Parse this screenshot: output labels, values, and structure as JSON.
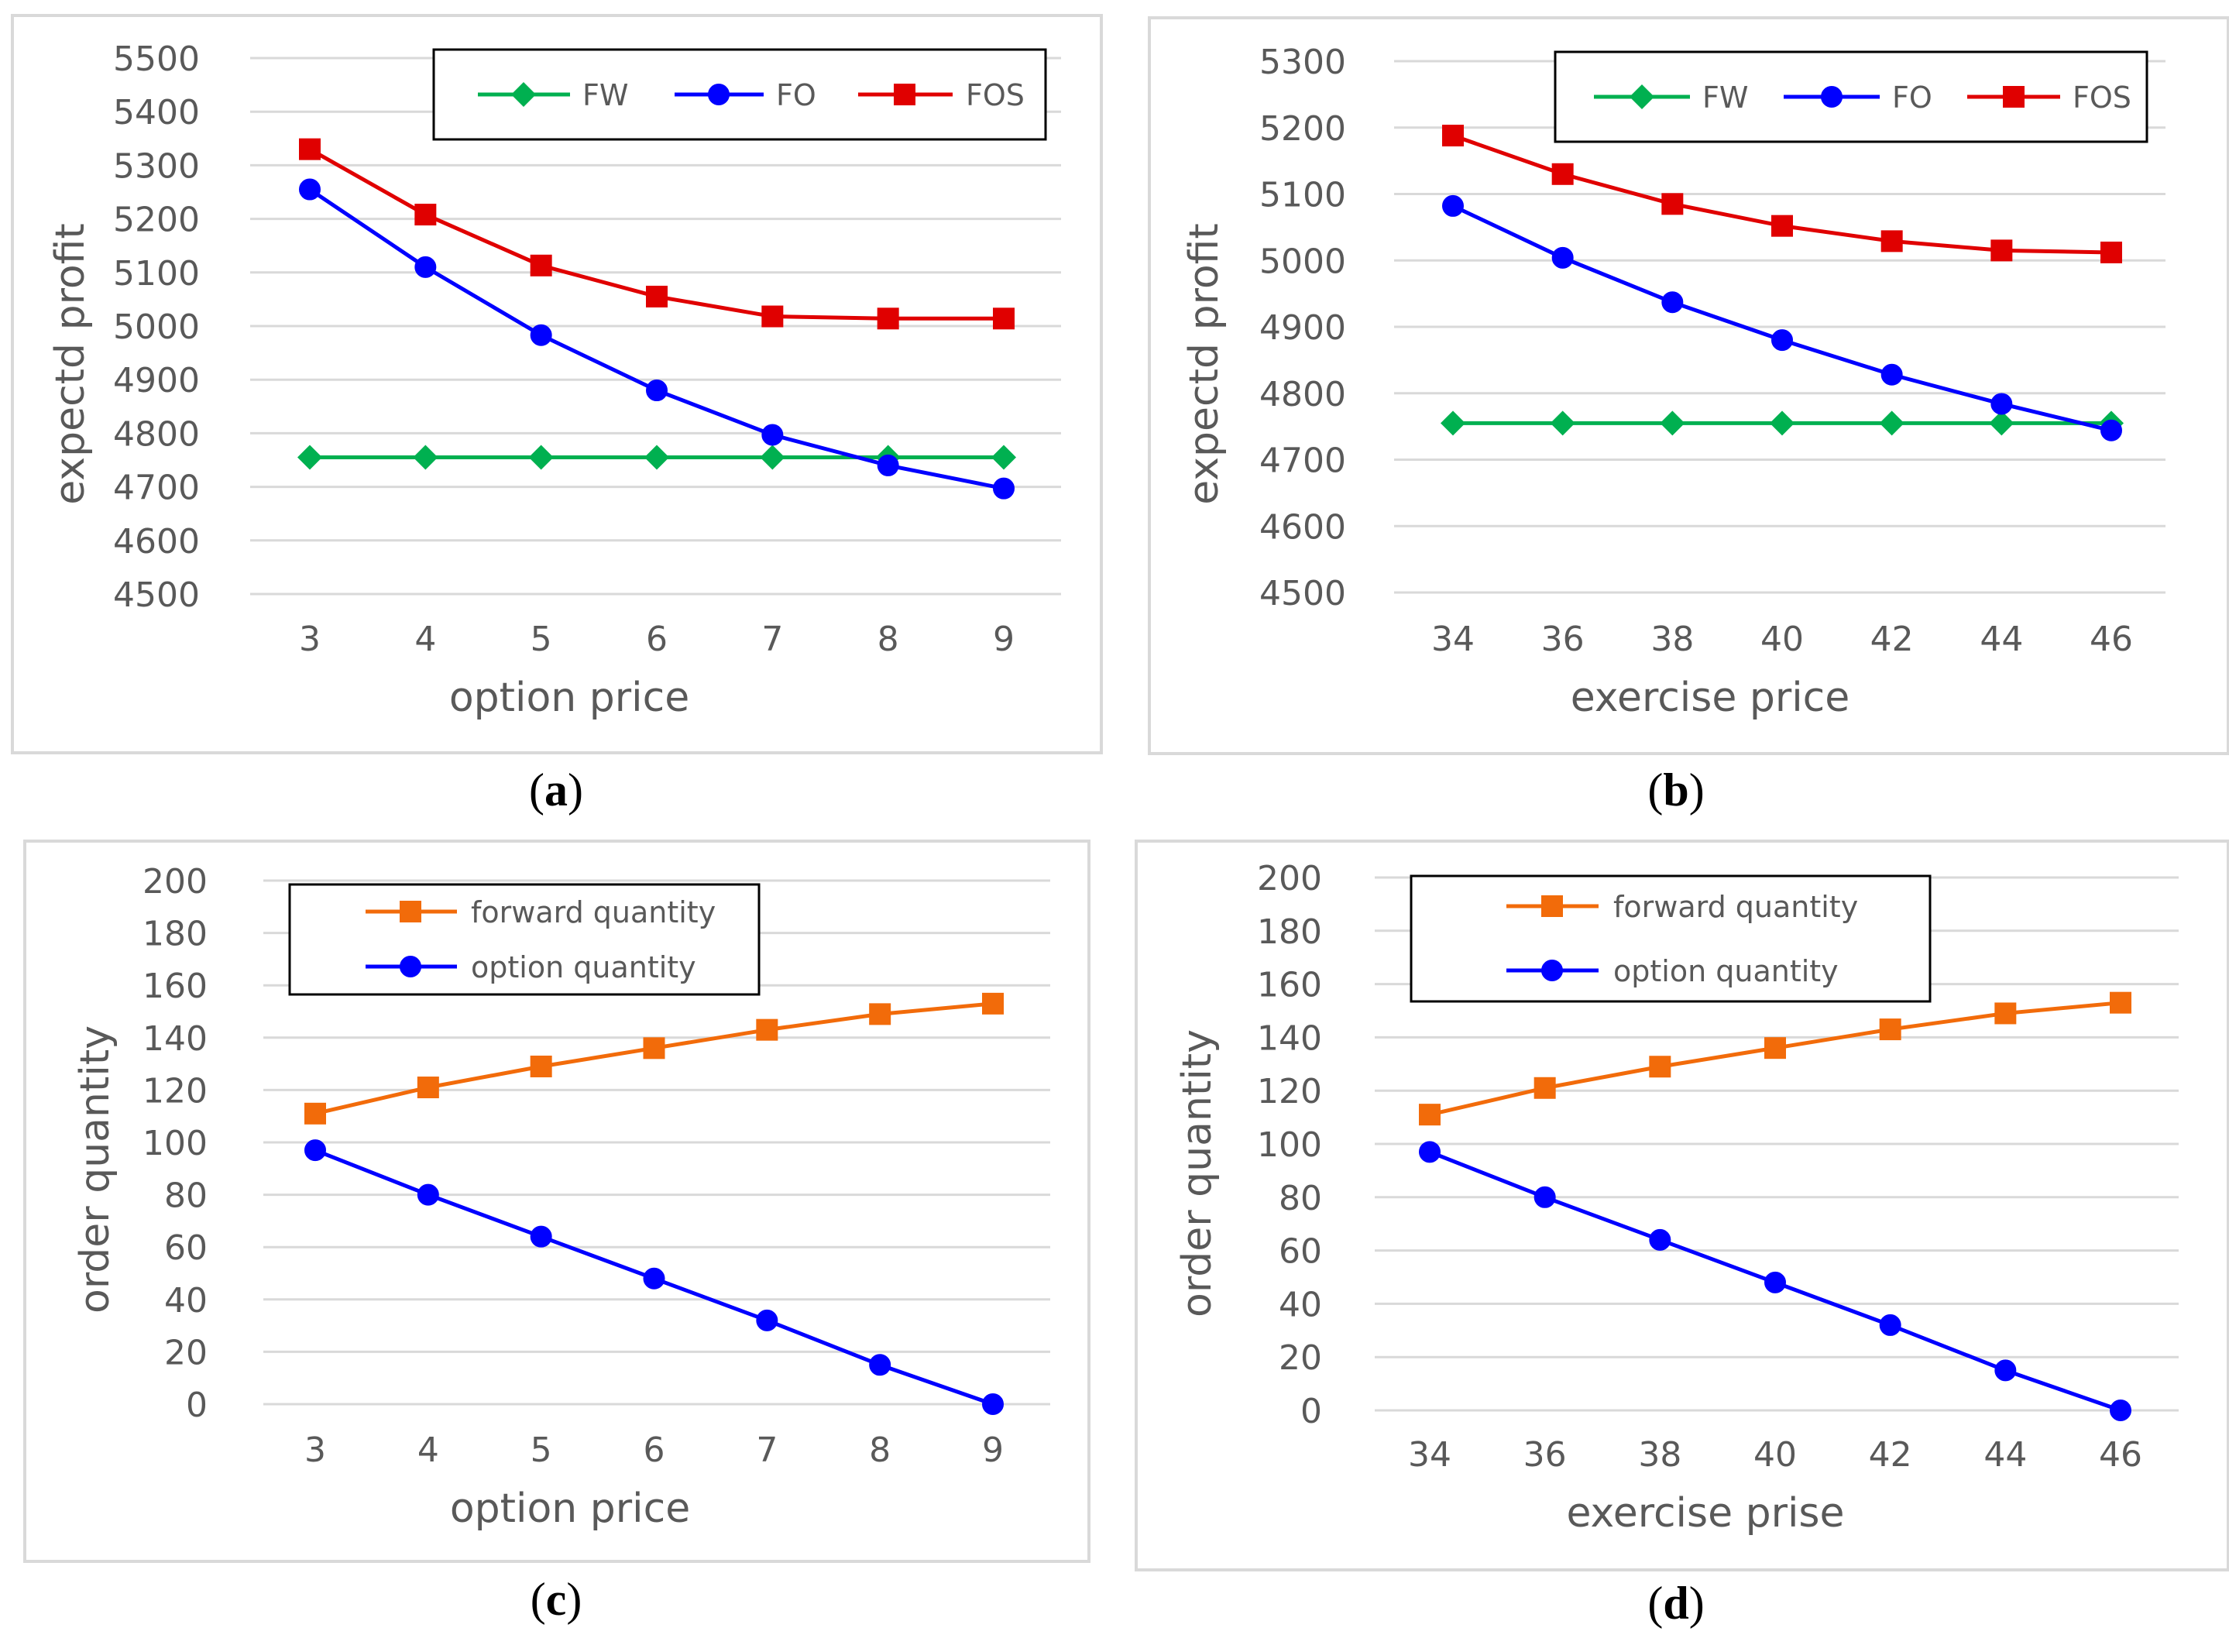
{
  "chart_data": [
    {
      "id": "a",
      "type": "line",
      "caption_letter": "a",
      "x": [
        "3",
        "4",
        "5",
        "6",
        "7",
        "8",
        "9"
      ],
      "xlabel": "option price",
      "ylabel": "expectd profit",
      "ylim": [
        4500,
        5500
      ],
      "yticks": [
        "4500",
        "4600",
        "4700",
        "4800",
        "4900",
        "5000",
        "5100",
        "5200",
        "5300",
        "5400",
        "5500"
      ],
      "grid": true,
      "legend_position": "top",
      "series": [
        {
          "name": "FW",
          "color": "#00B050",
          "marker": "diamond",
          "values": [
            4755,
            4755,
            4755,
            4755,
            4755,
            4755,
            4755
          ]
        },
        {
          "name": "FO",
          "color": "#0000FF",
          "marker": "circle",
          "values": [
            5255,
            5110,
            4983,
            4880,
            4797,
            4740,
            4697
          ]
        },
        {
          "name": "FOS",
          "color": "#E00000",
          "marker": "square",
          "values": [
            5330,
            5208,
            5113,
            5055,
            5018,
            5014,
            5014
          ]
        }
      ]
    },
    {
      "id": "b",
      "type": "line",
      "caption_letter": "b",
      "x": [
        "34",
        "36",
        "38",
        "40",
        "42",
        "44",
        "46"
      ],
      "xlabel": "exercise price",
      "ylabel": "expectd profit",
      "ylim": [
        4500,
        5300
      ],
      "yticks": [
        "4500",
        "4600",
        "4700",
        "4800",
        "4900",
        "5000",
        "5100",
        "5200",
        "5300"
      ],
      "grid": true,
      "legend_position": "top",
      "series": [
        {
          "name": "FW",
          "color": "#00B050",
          "marker": "diamond",
          "values": [
            4755,
            4755,
            4755,
            4755,
            4755,
            4755,
            4755
          ]
        },
        {
          "name": "FO",
          "color": "#0000FF",
          "marker": "circle",
          "values": [
            5082,
            5004,
            4937,
            4880,
            4828,
            4784,
            4744
          ]
        },
        {
          "name": "FOS",
          "color": "#E00000",
          "marker": "square",
          "values": [
            5188,
            5130,
            5085,
            5052,
            5029,
            5015,
            5012
          ]
        }
      ]
    },
    {
      "id": "c",
      "type": "line",
      "caption_letter": "c",
      "x": [
        "3",
        "4",
        "5",
        "6",
        "7",
        "8",
        "9"
      ],
      "xlabel": "option price",
      "ylabel": "order quantity",
      "ylim": [
        0,
        200
      ],
      "yticks": [
        "0",
        "20",
        "40",
        "60",
        "80",
        "100",
        "120",
        "140",
        "160",
        "180",
        "200"
      ],
      "grid": true,
      "legend_position": "top-left",
      "series": [
        {
          "name": "forward quantity",
          "color": "#F26B0A",
          "marker": "square",
          "values": [
            111,
            121,
            129,
            136,
            143,
            149,
            153
          ]
        },
        {
          "name": "option quantity",
          "color": "#0000FF",
          "marker": "circle",
          "values": [
            97,
            80,
            64,
            48,
            32,
            15,
            0
          ]
        }
      ]
    },
    {
      "id": "d",
      "type": "line",
      "caption_letter": "d",
      "x": [
        "34",
        "36",
        "38",
        "40",
        "42",
        "44",
        "46"
      ],
      "xlabel": "exercise prise",
      "ylabel": "order quantity",
      "ylim": [
        0,
        200
      ],
      "yticks": [
        "0",
        "20",
        "40",
        "60",
        "80",
        "100",
        "120",
        "140",
        "160",
        "180",
        "200"
      ],
      "grid": true,
      "legend_position": "top-left",
      "series": [
        {
          "name": "forward quantity",
          "color": "#F26B0A",
          "marker": "square",
          "values": [
            111,
            121,
            129,
            136,
            143,
            149,
            153
          ]
        },
        {
          "name": "option quantity",
          "color": "#0000FF",
          "marker": "circle",
          "values": [
            97,
            80,
            64,
            48,
            32,
            15,
            0
          ]
        }
      ]
    }
  ]
}
